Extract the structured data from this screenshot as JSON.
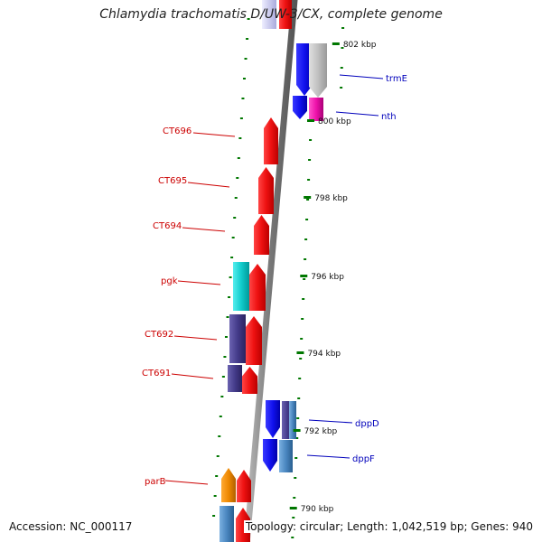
{
  "title": "Chlamydia trachomatis D/UW-3/CX, complete genome",
  "footer": {
    "accession": "Accession: NC_000117",
    "topology": "Topology: circular; Length: 1,042,519 bp; Genes: 940"
  },
  "ticks": [
    {
      "label": "802 kbp",
      "kbp": 802
    },
    {
      "label": "800 kbp",
      "kbp": 800
    },
    {
      "label": "798 kbp",
      "kbp": 798
    },
    {
      "label": "796 kbp",
      "kbp": 796
    },
    {
      "label": "794 kbp",
      "kbp": 794
    },
    {
      "label": "792 kbp",
      "kbp": 792
    },
    {
      "label": "790 kbp",
      "kbp": 790
    }
  ],
  "gene_labels": [
    {
      "name": "trmE",
      "strand": "reverse"
    },
    {
      "name": "nth",
      "strand": "reverse"
    },
    {
      "name": "CT696",
      "strand": "forward"
    },
    {
      "name": "CT695",
      "strand": "forward"
    },
    {
      "name": "CT694",
      "strand": "forward"
    },
    {
      "name": "pgk",
      "strand": "forward"
    },
    {
      "name": "CT692",
      "strand": "forward"
    },
    {
      "name": "CT691",
      "strand": "forward"
    },
    {
      "name": "dppD",
      "strand": "reverse"
    },
    {
      "name": "dppF",
      "strand": "reverse"
    },
    {
      "name": "parB",
      "strand": "forward"
    }
  ],
  "colors": {
    "forward_label": "#cc0000",
    "reverse_label": "#0000bb",
    "backbone": "#888888",
    "tick": "#007700",
    "cds": "#ee1111",
    "blue": "#1111ee",
    "gray": "#c0c0c0",
    "magenta": "#ee11aa",
    "cyan": "#11cccc",
    "navy": "#443b8a",
    "steel": "#4a86c0",
    "orange": "#ee8800",
    "lavender": "#ccccee"
  }
}
